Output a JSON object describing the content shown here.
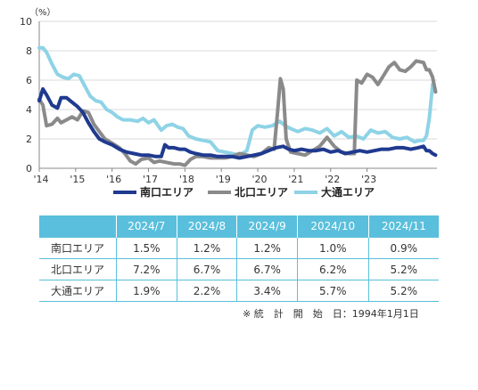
{
  "chart_data": {
    "type": "line",
    "unit_label": "（%）",
    "ylim": [
      0,
      10
    ],
    "y_ticks": [
      "0",
      "2",
      "4",
      "6",
      "8",
      "10"
    ],
    "xlim": [
      2014.0,
      2024.92
    ],
    "x_ticks": [
      {
        "value": 2014,
        "label": "'14"
      },
      {
        "value": 2015,
        "label": "'15"
      },
      {
        "value": 2016,
        "label": "'16"
      },
      {
        "value": 2017,
        "label": "'17"
      },
      {
        "value": 2018,
        "label": "'18"
      },
      {
        "value": 2019,
        "label": "'19"
      },
      {
        "value": 2020,
        "label": "'20"
      },
      {
        "value": 2021,
        "label": "'21"
      },
      {
        "value": 2022,
        "label": "'22"
      },
      {
        "value": 2023,
        "label": "'23"
      }
    ],
    "grid": "horizontal",
    "legend_position": "bottom",
    "series": [
      {
        "name": "南口エリア",
        "color": "#1f3a8f",
        "points": [
          [
            2014.0,
            4.6
          ],
          [
            2014.1,
            5.4
          ],
          [
            2014.2,
            5.0
          ],
          [
            2014.35,
            4.3
          ],
          [
            2014.5,
            4.1
          ],
          [
            2014.6,
            4.8
          ],
          [
            2014.75,
            4.8
          ],
          [
            2014.9,
            4.5
          ],
          [
            2015.05,
            4.2
          ],
          [
            2015.2,
            3.8
          ],
          [
            2015.35,
            3.1
          ],
          [
            2015.5,
            2.5
          ],
          [
            2015.65,
            2.0
          ],
          [
            2015.8,
            1.8
          ],
          [
            2016.0,
            1.6
          ],
          [
            2016.2,
            1.3
          ],
          [
            2016.4,
            1.1
          ],
          [
            2016.6,
            1.0
          ],
          [
            2016.8,
            0.9
          ],
          [
            2017.0,
            0.9
          ],
          [
            2017.2,
            0.8
          ],
          [
            2017.35,
            0.8
          ],
          [
            2017.45,
            1.6
          ],
          [
            2017.55,
            1.4
          ],
          [
            2017.7,
            1.4
          ],
          [
            2017.85,
            1.3
          ],
          [
            2018.0,
            1.3
          ],
          [
            2018.15,
            1.1
          ],
          [
            2018.3,
            1.0
          ],
          [
            2018.5,
            0.9
          ],
          [
            2018.7,
            0.9
          ],
          [
            2018.9,
            0.8
          ],
          [
            2019.1,
            0.8
          ],
          [
            2019.3,
            0.8
          ],
          [
            2019.5,
            0.7
          ],
          [
            2019.7,
            0.8
          ],
          [
            2019.9,
            0.9
          ],
          [
            2020.1,
            1.0
          ],
          [
            2020.3,
            1.2
          ],
          [
            2020.5,
            1.4
          ],
          [
            2020.7,
            1.5
          ],
          [
            2020.85,
            1.3
          ],
          [
            2021.0,
            1.2
          ],
          [
            2021.2,
            1.3
          ],
          [
            2021.4,
            1.2
          ],
          [
            2021.6,
            1.2
          ],
          [
            2021.8,
            1.3
          ],
          [
            2022.0,
            1.1
          ],
          [
            2022.2,
            1.2
          ],
          [
            2022.4,
            1.0
          ],
          [
            2022.6,
            1.1
          ],
          [
            2022.8,
            1.2
          ],
          [
            2023.0,
            1.1
          ],
          [
            2023.2,
            1.2
          ],
          [
            2023.4,
            1.3
          ],
          [
            2023.6,
            1.3
          ],
          [
            2023.8,
            1.4
          ],
          [
            2024.0,
            1.4
          ],
          [
            2024.2,
            1.3
          ],
          [
            2024.4,
            1.4
          ],
          [
            2024.55,
            1.5
          ],
          [
            2024.63,
            1.2
          ],
          [
            2024.71,
            1.2
          ],
          [
            2024.8,
            1.0
          ],
          [
            2024.88,
            0.9
          ]
        ]
      },
      {
        "name": "北口エリア",
        "color": "#8a8a8a",
        "points": [
          [
            2014.0,
            4.7
          ],
          [
            2014.1,
            4.3
          ],
          [
            2014.2,
            2.9
          ],
          [
            2014.35,
            3.0
          ],
          [
            2014.5,
            3.4
          ],
          [
            2014.6,
            3.1
          ],
          [
            2014.75,
            3.3
          ],
          [
            2014.9,
            3.5
          ],
          [
            2015.05,
            3.3
          ],
          [
            2015.2,
            3.9
          ],
          [
            2015.35,
            3.8
          ],
          [
            2015.5,
            3.0
          ],
          [
            2015.65,
            2.5
          ],
          [
            2015.8,
            2.0
          ],
          [
            2016.0,
            1.7
          ],
          [
            2016.2,
            1.4
          ],
          [
            2016.35,
            1.0
          ],
          [
            2016.5,
            0.5
          ],
          [
            2016.65,
            0.3
          ],
          [
            2016.8,
            0.6
          ],
          [
            2017.0,
            0.7
          ],
          [
            2017.15,
            0.4
          ],
          [
            2017.3,
            0.5
          ],
          [
            2017.5,
            0.4
          ],
          [
            2017.7,
            0.3
          ],
          [
            2017.85,
            0.3
          ],
          [
            2018.0,
            0.2
          ],
          [
            2018.15,
            0.6
          ],
          [
            2018.3,
            0.8
          ],
          [
            2018.5,
            0.8
          ],
          [
            2018.7,
            0.7
          ],
          [
            2018.9,
            0.7
          ],
          [
            2019.1,
            0.7
          ],
          [
            2019.3,
            0.8
          ],
          [
            2019.5,
            1.0
          ],
          [
            2019.7,
            0.9
          ],
          [
            2019.9,
            0.8
          ],
          [
            2020.1,
            1.0
          ],
          [
            2020.3,
            1.4
          ],
          [
            2020.45,
            1.3
          ],
          [
            2020.55,
            4.0
          ],
          [
            2020.62,
            6.1
          ],
          [
            2020.7,
            5.4
          ],
          [
            2020.78,
            2.0
          ],
          [
            2020.9,
            1.1
          ],
          [
            2021.1,
            1.0
          ],
          [
            2021.3,
            0.9
          ],
          [
            2021.5,
            1.2
          ],
          [
            2021.7,
            1.5
          ],
          [
            2021.9,
            2.1
          ],
          [
            2022.1,
            1.5
          ],
          [
            2022.3,
            1.1
          ],
          [
            2022.5,
            1.0
          ],
          [
            2022.65,
            1.0
          ],
          [
            2022.72,
            6.0
          ],
          [
            2022.85,
            5.8
          ],
          [
            2023.0,
            6.4
          ],
          [
            2023.15,
            6.2
          ],
          [
            2023.3,
            5.7
          ],
          [
            2023.45,
            6.3
          ],
          [
            2023.6,
            6.9
          ],
          [
            2023.75,
            7.2
          ],
          [
            2023.9,
            6.7
          ],
          [
            2024.05,
            6.6
          ],
          [
            2024.2,
            6.9
          ],
          [
            2024.35,
            7.3
          ],
          [
            2024.55,
            7.2
          ],
          [
            2024.63,
            6.7
          ],
          [
            2024.71,
            6.7
          ],
          [
            2024.8,
            6.2
          ],
          [
            2024.88,
            5.2
          ]
        ]
      },
      {
        "name": "大通エリア",
        "color": "#8ed3e6",
        "points": [
          [
            2014.0,
            8.2
          ],
          [
            2014.1,
            8.2
          ],
          [
            2014.2,
            7.9
          ],
          [
            2014.35,
            7.1
          ],
          [
            2014.5,
            6.4
          ],
          [
            2014.65,
            6.2
          ],
          [
            2014.8,
            6.1
          ],
          [
            2014.95,
            6.4
          ],
          [
            2015.1,
            6.3
          ],
          [
            2015.25,
            5.6
          ],
          [
            2015.4,
            4.9
          ],
          [
            2015.55,
            4.6
          ],
          [
            2015.7,
            4.5
          ],
          [
            2015.85,
            4.0
          ],
          [
            2016.0,
            3.8
          ],
          [
            2016.15,
            3.5
          ],
          [
            2016.3,
            3.3
          ],
          [
            2016.5,
            3.3
          ],
          [
            2016.7,
            3.2
          ],
          [
            2016.85,
            3.4
          ],
          [
            2017.0,
            3.1
          ],
          [
            2017.15,
            3.3
          ],
          [
            2017.35,
            2.6
          ],
          [
            2017.5,
            2.9
          ],
          [
            2017.65,
            3.0
          ],
          [
            2017.8,
            2.8
          ],
          [
            2017.95,
            2.7
          ],
          [
            2018.1,
            2.2
          ],
          [
            2018.3,
            2.0
          ],
          [
            2018.5,
            1.9
          ],
          [
            2018.7,
            1.8
          ],
          [
            2018.9,
            1.2
          ],
          [
            2019.1,
            1.1
          ],
          [
            2019.3,
            1.0
          ],
          [
            2019.5,
            0.9
          ],
          [
            2019.7,
            1.2
          ],
          [
            2019.85,
            2.6
          ],
          [
            2020.0,
            2.9
          ],
          [
            2020.2,
            2.8
          ],
          [
            2020.4,
            2.9
          ],
          [
            2020.6,
            3.2
          ],
          [
            2020.75,
            2.9
          ],
          [
            2020.9,
            2.7
          ],
          [
            2021.1,
            2.5
          ],
          [
            2021.3,
            2.7
          ],
          [
            2021.5,
            2.6
          ],
          [
            2021.7,
            2.4
          ],
          [
            2021.9,
            2.7
          ],
          [
            2022.1,
            2.2
          ],
          [
            2022.3,
            2.5
          ],
          [
            2022.5,
            2.1
          ],
          [
            2022.7,
            2.2
          ],
          [
            2022.9,
            2.0
          ],
          [
            2023.1,
            2.6
          ],
          [
            2023.3,
            2.4
          ],
          [
            2023.5,
            2.5
          ],
          [
            2023.7,
            2.1
          ],
          [
            2023.9,
            2.0
          ],
          [
            2024.1,
            2.1
          ],
          [
            2024.3,
            1.8
          ],
          [
            2024.45,
            1.9
          ],
          [
            2024.55,
            1.9
          ],
          [
            2024.63,
            2.2
          ],
          [
            2024.71,
            3.4
          ],
          [
            2024.8,
            5.7
          ],
          [
            2024.88,
            5.2
          ]
        ]
      }
    ]
  },
  "table": {
    "headers": [
      "",
      "2024/7",
      "2024/8",
      "2024/9",
      "2024/10",
      "2024/11"
    ],
    "rows": [
      {
        "label": "南口エリア",
        "values": [
          "1.5%",
          "1.2%",
          "1.2%",
          "1.0%",
          "0.9%"
        ]
      },
      {
        "label": "北口エリア",
        "values": [
          "7.2%",
          "6.7%",
          "6.7%",
          "6.2%",
          "5.2%"
        ]
      },
      {
        "label": "大通エリア",
        "values": [
          "1.9%",
          "2.2%",
          "3.4%",
          "5.7%",
          "5.2%"
        ]
      }
    ]
  },
  "note": "※ 統　計　開　始　日：1994年1月1日"
}
